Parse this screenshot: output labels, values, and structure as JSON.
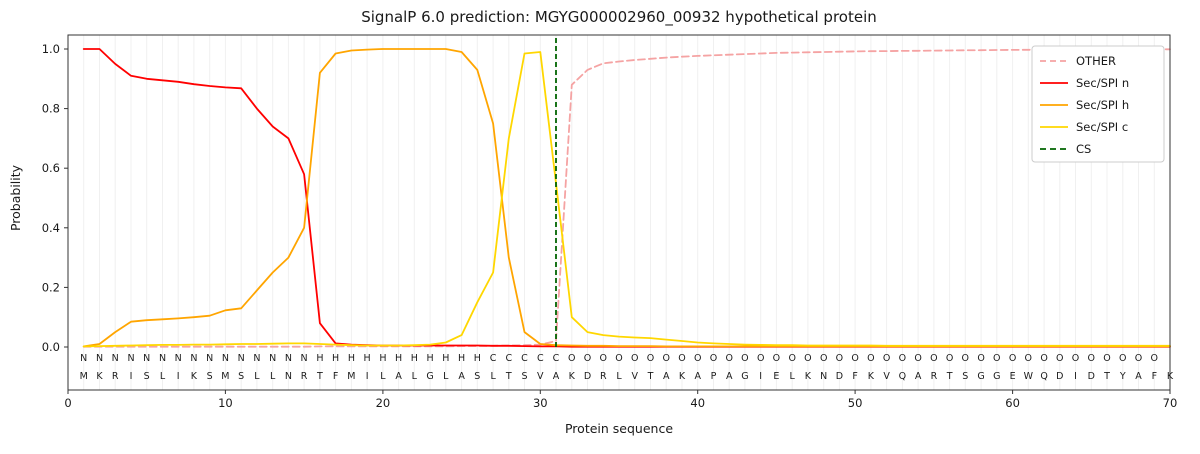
{
  "chart_data": {
    "type": "line",
    "title": "SignalP 6.0 prediction: MGYG000002960_00932 hypothetical protein",
    "xlabel": "Protein sequence",
    "ylabel": "Probability",
    "xlim": [
      0,
      70
    ],
    "ylim": [
      0,
      1.0
    ],
    "xticks": [
      0,
      10,
      20,
      30,
      40,
      50,
      60,
      70
    ],
    "yticks": [
      0.0,
      0.2,
      0.4,
      0.6,
      0.8,
      1.0
    ],
    "grid": "vertical-per-residue",
    "legend_position": "upper-right",
    "cs_position": 31,
    "cs_color": "#006400",
    "sequence": "MKRISLIKSMSLLNRTFMILALGLASLTSVAKDRLVTAKAPAGIELKNDFKVQARTSGGEWQDIDTYAFK",
    "regions": "NNNNNNNNNNNNNNNHHHHHHHHHHHCCCCCOOOOOOOOOOOOOOOOOOOOOOOOOOOOOOOOOOOOOO",
    "region_colors": {
      "N": "#ff0000",
      "H": "#ffa500",
      "C": "#ffd700",
      "O": "#808080"
    },
    "series": [
      {
        "name": "OTHER",
        "color": "#f5a3a3",
        "dash": "7,4",
        "values": [
          0.001,
          0.001,
          0.001,
          0.001,
          0.001,
          0.001,
          0.001,
          0.001,
          0.001,
          0.001,
          0.001,
          0.001,
          0.001,
          0.001,
          0.001,
          0.002,
          0.002,
          0.002,
          0.002,
          0.002,
          0.002,
          0.002,
          0.002,
          0.002,
          0.003,
          0.003,
          0.004,
          0.005,
          0.006,
          0.008,
          0.02,
          0.88,
          0.93,
          0.952,
          0.958,
          0.963,
          0.967,
          0.971,
          0.974,
          0.977,
          0.979,
          0.981,
          0.983,
          0.985,
          0.987,
          0.988,
          0.989,
          0.99,
          0.991,
          0.992,
          0.9925,
          0.993,
          0.9935,
          0.994,
          0.9945,
          0.995,
          0.9955,
          0.996,
          0.9965,
          0.997,
          0.9972,
          0.9975,
          0.9978,
          0.998,
          0.9982,
          0.9984,
          0.9986,
          0.9988,
          0.999,
          0.999
        ]
      },
      {
        "name": "Sec/SPI n",
        "color": "#ff0000",
        "dash": null,
        "values": [
          1.0,
          1.0,
          0.95,
          0.91,
          0.9,
          0.895,
          0.89,
          0.882,
          0.876,
          0.871,
          0.868,
          0.8,
          0.74,
          0.7,
          0.58,
          0.08,
          0.012,
          0.008,
          0.006,
          0.005,
          0.005,
          0.005,
          0.005,
          0.005,
          0.005,
          0.005,
          0.004,
          0.004,
          0.003,
          0.002,
          0.002,
          0.001,
          0.001,
          0.001,
          0.001,
          0.001,
          0.001,
          0.001,
          0.001,
          0.001,
          0.001,
          0.001,
          0.001,
          0.001,
          0.001,
          0.001,
          0.001,
          0.001,
          0.001,
          0.001,
          0.001,
          0.001,
          0.001,
          0.001,
          0.001,
          0.001,
          0.001,
          0.001,
          0.001,
          0.001,
          0.001,
          0.001,
          0.001,
          0.001,
          0.001,
          0.001,
          0.001,
          0.001,
          0.001,
          0.001
        ]
      },
      {
        "name": "Sec/SPI h",
        "color": "#ffa500",
        "dash": null,
        "values": [
          0.002,
          0.01,
          0.05,
          0.085,
          0.09,
          0.093,
          0.096,
          0.1,
          0.105,
          0.123,
          0.13,
          0.19,
          0.25,
          0.3,
          0.4,
          0.92,
          0.985,
          0.995,
          0.998,
          1.0,
          1.0,
          1.0,
          1.0,
          1.0,
          0.99,
          0.93,
          0.75,
          0.3,
          0.05,
          0.01,
          0.006,
          0.005,
          0.004,
          0.004,
          0.003,
          0.003,
          0.003,
          0.002,
          0.002,
          0.002,
          0.002,
          0.002,
          0.002,
          0.002,
          0.002,
          0.002,
          0.002,
          0.002,
          0.002,
          0.002,
          0.002,
          0.002,
          0.002,
          0.002,
          0.002,
          0.002,
          0.002,
          0.002,
          0.002,
          0.002,
          0.002,
          0.002,
          0.002,
          0.002,
          0.002,
          0.002,
          0.002,
          0.002,
          0.002,
          0.002
        ]
      },
      {
        "name": "Sec/SPI c",
        "color": "#ffd700",
        "dash": null,
        "values": [
          0.002,
          0.003,
          0.004,
          0.005,
          0.006,
          0.007,
          0.007,
          0.008,
          0.008,
          0.009,
          0.01,
          0.01,
          0.011,
          0.012,
          0.012,
          0.01,
          0.008,
          0.006,
          0.005,
          0.005,
          0.005,
          0.006,
          0.008,
          0.015,
          0.04,
          0.15,
          0.25,
          0.7,
          0.985,
          0.99,
          0.55,
          0.1,
          0.05,
          0.04,
          0.035,
          0.032,
          0.03,
          0.025,
          0.02,
          0.015,
          0.012,
          0.01,
          0.008,
          0.007,
          0.006,
          0.006,
          0.005,
          0.005,
          0.005,
          0.005,
          0.005,
          0.004,
          0.004,
          0.004,
          0.004,
          0.004,
          0.004,
          0.004,
          0.004,
          0.004,
          0.004,
          0.004,
          0.004,
          0.004,
          0.004,
          0.004,
          0.004,
          0.004,
          0.004,
          0.004
        ]
      }
    ],
    "legend": [
      {
        "label": "OTHER",
        "color": "#f5a3a3",
        "dash": true
      },
      {
        "label": "Sec/SPI n",
        "color": "#ff0000",
        "dash": false
      },
      {
        "label": "Sec/SPI h",
        "color": "#ffa500",
        "dash": false
      },
      {
        "label": "Sec/SPI c",
        "color": "#ffd700",
        "dash": false
      },
      {
        "label": "CS",
        "color": "#006400",
        "dash": true
      }
    ]
  }
}
